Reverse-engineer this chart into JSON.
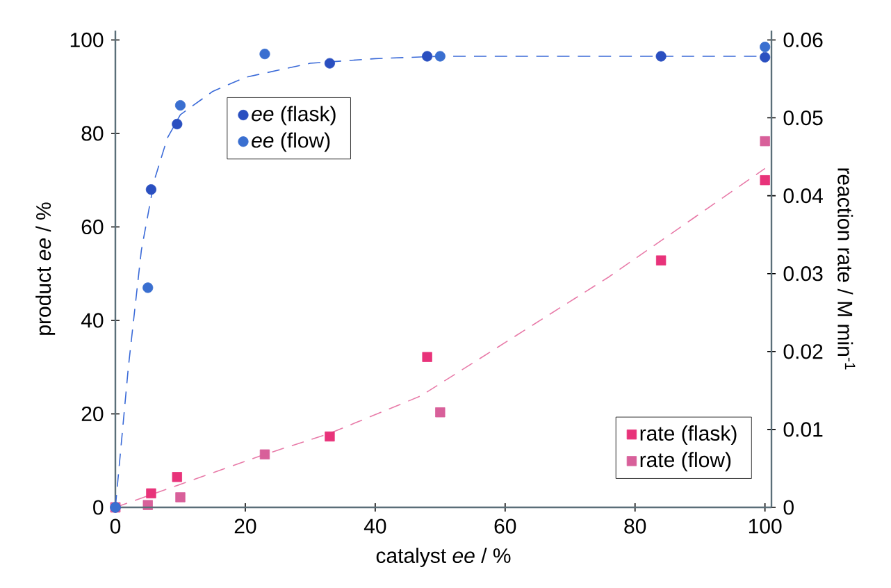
{
  "chart_data": {
    "type": "scatter",
    "xlabel": "catalyst *ee* / %",
    "ylabel": "product *ee* / %",
    "y2label": "reaction rate / M min$^{-1}$",
    "xlim": [
      0,
      101
    ],
    "ylim": [
      0,
      102
    ],
    "y2lim": [
      0,
      0.0612
    ],
    "xticks": [
      0,
      20,
      40,
      60,
      80,
      100
    ],
    "yticks": [
      0,
      20,
      40,
      60,
      80,
      100
    ],
    "y2ticks": [
      0,
      0.01,
      0.02,
      0.03,
      0.04,
      0.05,
      0.06
    ],
    "legend": "bottom right",
    "grid": false,
    "series": [
      {
        "type": "line",
        "color": "#3a6ad8",
        "line_style": "dashed",
        "marker": "none",
        "x": [
          0,
          2,
          4,
          6,
          8,
          10,
          15,
          20,
          30,
          40,
          50,
          60,
          100
        ],
        "values": [
          0,
          30,
          55,
          70,
          79,
          84,
          89,
          92,
          95,
          96,
          96.5,
          96.5,
          96.5
        ]
      },
      {
        "type": "line",
        "color": "#e87aa8",
        "line_style": "dashed",
        "marker": "none",
        "axis": "y2",
        "x": [
          0,
          23,
          33,
          47,
          76,
          100
        ],
        "values": [
          0,
          0.0068,
          0.0095,
          0.0143,
          0.0296,
          0.0435
        ]
      },
      {
        "name": "*ee* (flask)",
        "color": "#2a4fc0",
        "marker": "circle",
        "x": [
          0,
          5.5,
          9.5,
          33,
          48,
          84,
          100
        ],
        "values": [
          0,
          68,
          82,
          95,
          96.5,
          96.5,
          96.3
        ]
      },
      {
        "name": "*ee* (flow)",
        "color": "#3a6fd0",
        "marker": "circle",
        "x": [
          0,
          5,
          10,
          23,
          50,
          100
        ],
        "values": [
          0,
          47,
          86,
          97,
          96.5,
          98.5
        ]
      },
      {
        "name": "rate (flask)",
        "color": "#e8337a",
        "marker": "square",
        "axis": "y2",
        "x": [
          0,
          5.5,
          9.5,
          33,
          48,
          84,
          100
        ],
        "values": [
          0,
          0.0018,
          0.0039,
          0.0091,
          0.0193,
          0.0317,
          0.042
        ]
      },
      {
        "name": "rate (flow)",
        "color": "#d8609a",
        "marker": "square",
        "axis": "y2",
        "x": [
          0,
          5,
          10,
          23,
          50,
          100
        ],
        "values": [
          0,
          0.0003,
          0.0013,
          0.0068,
          0.0122,
          0.047
        ]
      }
    ]
  }
}
